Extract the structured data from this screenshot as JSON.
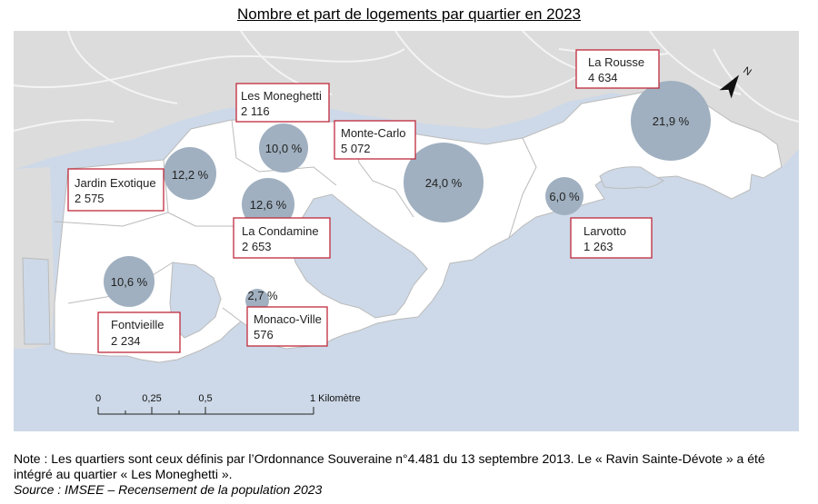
{
  "title": "Nombre et part de logements par quartier en 2023",
  "quarters": [
    {
      "id": "les-moneghetti",
      "name": "Les Moneghetti",
      "value": "2 116",
      "share": "10,0 %"
    },
    {
      "id": "monte-carlo",
      "name": "Monte-Carlo",
      "value": "5 072",
      "share": "24,0 %"
    },
    {
      "id": "la-rousse",
      "name": "La Rousse",
      "value": "4 634",
      "share": "21,9 %"
    },
    {
      "id": "jardin-exotique",
      "name": "Jardin Exotique",
      "value": "2 575",
      "share": "12,2 %"
    },
    {
      "id": "la-condamine",
      "name": "La Condamine",
      "value": "2 653",
      "share": "12,6 %"
    },
    {
      "id": "larvotto",
      "name": "Larvotto",
      "value": "1 263",
      "share": "6,0 %"
    },
    {
      "id": "fontvieille",
      "name": "Fontvieille",
      "value": "2 234",
      "share": "10,6 %"
    },
    {
      "id": "monaco-ville",
      "name": "Monaco-Ville",
      "value": "576",
      "share": "2,7 %"
    }
  ],
  "scale_bar": {
    "ticks": [
      "0",
      "0,25",
      "0,5",
      "1 Kilomètre"
    ]
  },
  "north_label": "N",
  "note": "Note : Les quartiers sont ceux définis par l’Ordonnance Souveraine n°4.481 du 13 septembre 2013. Le « Ravin Sainte-Dévote » a été intégré au quartier « Les Moneghetti ».",
  "source": "Source : IMSEE – Recensement de la population 2023",
  "colors": {
    "sea": "#cdd9e8",
    "land": "#dcdcdc",
    "territory": "#ffffff",
    "bubble": "#a0b0c0",
    "box": "#c0293b",
    "road": "#f2f2f2"
  }
}
